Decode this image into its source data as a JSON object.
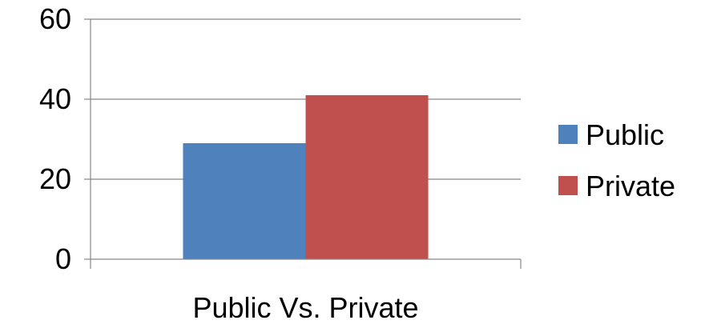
{
  "chart_data": {
    "type": "bar",
    "categories": [
      "Public Vs. Private"
    ],
    "series": [
      {
        "name": "Public",
        "values": [
          29
        ],
        "color": "#4F81BD"
      },
      {
        "name": "Private",
        "values": [
          41
        ],
        "color": "#C0504D"
      }
    ],
    "ylim": [
      0,
      60
    ],
    "yticks": [
      0,
      20,
      40,
      60
    ],
    "grid": true,
    "legend_position": "right"
  }
}
